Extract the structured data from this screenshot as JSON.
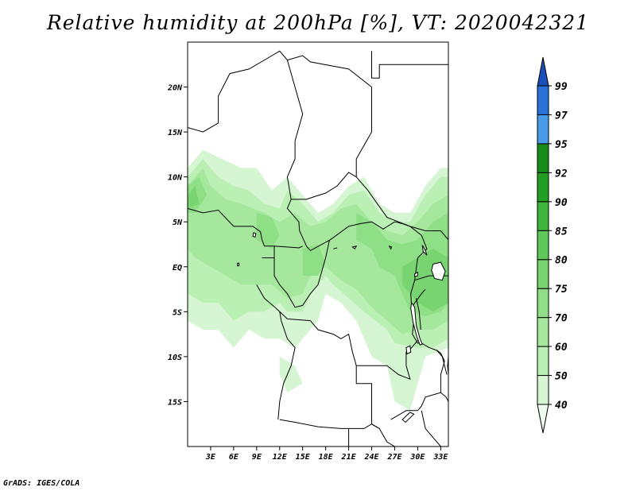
{
  "title": "Relative humidity at 200hPa [%], VT: 2020042321",
  "credit": "GrADS: IGES/COLA",
  "map": {
    "lon_range": [
      0,
      34
    ],
    "lat_range": [
      -20,
      25
    ],
    "lat_ticks": [
      {
        "value": 20,
        "label": "20N"
      },
      {
        "value": 15,
        "label": "15N"
      },
      {
        "value": 10,
        "label": "10N"
      },
      {
        "value": 5,
        "label": "5N"
      },
      {
        "value": 0,
        "label": "EQ"
      },
      {
        "value": -5,
        "label": "5S"
      },
      {
        "value": -10,
        "label": "10S"
      },
      {
        "value": -15,
        "label": "15S"
      }
    ],
    "lon_ticks": [
      {
        "value": 3,
        "label": "3E"
      },
      {
        "value": 6,
        "label": "6E"
      },
      {
        "value": 9,
        "label": "9E"
      },
      {
        "value": 12,
        "label": "12E"
      },
      {
        "value": 15,
        "label": "15E"
      },
      {
        "value": 18,
        "label": "18E"
      },
      {
        "value": 21,
        "label": "21E"
      },
      {
        "value": 24,
        "label": "24E"
      },
      {
        "value": 27,
        "label": "27E"
      },
      {
        "value": 30,
        "label": "30E"
      },
      {
        "value": 33,
        "label": "33E"
      }
    ]
  },
  "colorbar": {
    "levels": [
      "40",
      "50",
      "60",
      "70",
      "75",
      "80",
      "85",
      "90",
      "92",
      "95",
      "97",
      "99"
    ],
    "colors": [
      "#f0fcf0",
      "#d6f5d2",
      "#bbf0b4",
      "#a5e89d",
      "#8fdf86",
      "#78d470",
      "#5fc85a",
      "#3fb53c",
      "#23a023",
      "#1a8c1a",
      "#4a9ce8",
      "#2a72d8",
      "#1a4eb8"
    ]
  },
  "humidity_regions": [
    {
      "level": "40",
      "points": [
        [
          0,
          11
        ],
        [
          2,
          13
        ],
        [
          4.5,
          12
        ],
        [
          7,
          11
        ],
        [
          9,
          11
        ],
        [
          11,
          8.5
        ],
        [
          13,
          10
        ],
        [
          15,
          8
        ],
        [
          17,
          6
        ],
        [
          19,
          7
        ],
        [
          21,
          9
        ],
        [
          23,
          10
        ],
        [
          25,
          7
        ],
        [
          27,
          6
        ],
        [
          29,
          6
        ],
        [
          31,
          9
        ],
        [
          33,
          11
        ],
        [
          34,
          11
        ],
        [
          34,
          -9
        ],
        [
          31,
          -10
        ],
        [
          30,
          -13
        ],
        [
          29,
          -16
        ],
        [
          27,
          -15
        ],
        [
          26,
          -11
        ],
        [
          24,
          -10
        ],
        [
          22,
          -6
        ],
        [
          20,
          -4
        ],
        [
          18,
          -3
        ],
        [
          17,
          -6
        ],
        [
          14,
          -9
        ],
        [
          12,
          -8
        ],
        [
          10,
          -8
        ],
        [
          8,
          -7
        ],
        [
          6,
          -9
        ],
        [
          4,
          -7
        ],
        [
          2,
          -7
        ],
        [
          0,
          -6
        ]
      ]
    },
    {
      "level": "40",
      "points": [
        [
          12,
          -10
        ],
        [
          14,
          -11
        ],
        [
          15,
          -13
        ],
        [
          13,
          -14
        ],
        [
          12,
          -12
        ]
      ]
    },
    {
      "level": "50",
      "points": [
        [
          0,
          10
        ],
        [
          2,
          12
        ],
        [
          4,
          10
        ],
        [
          6,
          9
        ],
        [
          8,
          8.5
        ],
        [
          10,
          7
        ],
        [
          12,
          6.5
        ],
        [
          13,
          8.5
        ],
        [
          15,
          7
        ],
        [
          17,
          5
        ],
        [
          19,
          6
        ],
        [
          21,
          8
        ],
        [
          23,
          8.5
        ],
        [
          25,
          6
        ],
        [
          27,
          5
        ],
        [
          29,
          5
        ],
        [
          31,
          8
        ],
        [
          33,
          10
        ],
        [
          34,
          10
        ],
        [
          34,
          -8
        ],
        [
          32,
          -9
        ],
        [
          30,
          -9
        ],
        [
          27,
          -8.5
        ],
        [
          26,
          -7
        ],
        [
          23,
          -5
        ],
        [
          21,
          -3.5
        ],
        [
          19,
          -2
        ],
        [
          18,
          -1
        ],
        [
          16,
          -3
        ],
        [
          15,
          -5
        ],
        [
          13,
          -5
        ],
        [
          12,
          -4
        ],
        [
          10,
          -5
        ],
        [
          8,
          -5
        ],
        [
          6,
          -6
        ],
        [
          4,
          -4
        ],
        [
          2,
          -4
        ],
        [
          0,
          -3
        ]
      ]
    },
    {
      "level": "60",
      "points": [
        [
          0,
          9
        ],
        [
          2,
          11
        ],
        [
          3,
          9
        ],
        [
          5,
          7.5
        ],
        [
          7,
          7
        ],
        [
          10,
          6
        ],
        [
          12,
          5
        ],
        [
          14,
          6
        ],
        [
          16,
          4.5
        ],
        [
          18,
          5
        ],
        [
          20,
          6.5
        ],
        [
          22,
          7
        ],
        [
          24,
          5
        ],
        [
          26,
          4
        ],
        [
          28,
          3.5
        ],
        [
          30,
          5
        ],
        [
          32,
          7
        ],
        [
          34,
          8
        ],
        [
          34,
          -6
        ],
        [
          32,
          -7
        ],
        [
          30,
          -7
        ],
        [
          28,
          -7.5
        ],
        [
          26,
          -6
        ],
        [
          24,
          -4.5
        ],
        [
          22,
          -2.5
        ],
        [
          20,
          -1.5
        ],
        [
          18,
          0
        ],
        [
          16,
          -1
        ],
        [
          15,
          -3
        ],
        [
          13,
          -3.5
        ],
        [
          11,
          -2
        ],
        [
          9,
          -2
        ],
        [
          7,
          -2
        ],
        [
          5,
          -1
        ],
        [
          3,
          0
        ],
        [
          1,
          1
        ],
        [
          0,
          2
        ]
      ]
    },
    {
      "level": "70",
      "points": [
        [
          0,
          9
        ],
        [
          1.5,
          10
        ],
        [
          2.5,
          8
        ],
        [
          1,
          6
        ],
        [
          0,
          6
        ]
      ]
    },
    {
      "level": "70",
      "points": [
        [
          9,
          6
        ],
        [
          11,
          5.5
        ],
        [
          12,
          3.5
        ],
        [
          11,
          2
        ],
        [
          9,
          3
        ]
      ]
    },
    {
      "level": "70",
      "points": [
        [
          22,
          6
        ],
        [
          24,
          5
        ],
        [
          26,
          3
        ],
        [
          28,
          2.5
        ],
        [
          30,
          3
        ],
        [
          32,
          5
        ],
        [
          34,
          6
        ],
        [
          34,
          -4
        ],
        [
          33,
          -5
        ],
        [
          31,
          -5.5
        ],
        [
          29,
          -5
        ],
        [
          28,
          -3
        ],
        [
          27,
          -1
        ],
        [
          25,
          0
        ],
        [
          24,
          2
        ],
        [
          22,
          3
        ]
      ]
    },
    {
      "level": "70",
      "points": [
        [
          15,
          2
        ],
        [
          17,
          2.5
        ],
        [
          18,
          0.5
        ],
        [
          17,
          -1
        ],
        [
          15,
          -1
        ]
      ]
    },
    {
      "level": "75",
      "points": [
        [
          28,
          0
        ],
        [
          30,
          1
        ],
        [
          32,
          2
        ],
        [
          34,
          1
        ],
        [
          34,
          -4
        ],
        [
          32,
          -5
        ],
        [
          30,
          -4
        ],
        [
          28,
          -2
        ]
      ]
    },
    {
      "level": "75",
      "points": [
        [
          0,
          8
        ],
        [
          1,
          9
        ],
        [
          1.5,
          7
        ],
        [
          0,
          6.5
        ]
      ]
    }
  ],
  "boundaries": [
    [
      [
        0,
        15.5
      ],
      [
        2,
        15
      ],
      [
        4,
        16
      ],
      [
        4,
        19
      ],
      [
        5.5,
        21.5
      ],
      [
        8,
        22
      ],
      [
        11,
        23.5
      ],
      [
        12,
        24
      ],
      [
        13,
        23
      ]
    ],
    [
      [
        13,
        23
      ],
      [
        15,
        23.5
      ],
      [
        16,
        22.8
      ],
      [
        21,
        22
      ],
      [
        24,
        20
      ],
      [
        24,
        15
      ],
      [
        22,
        12
      ],
      [
        22,
        10
      ],
      [
        23.5,
        8.5
      ],
      [
        26,
        5.5
      ],
      [
        27.5,
        5
      ],
      [
        29,
        4.5
      ],
      [
        31,
        4
      ],
      [
        33,
        4
      ],
      [
        34,
        3
      ]
    ],
    [
      [
        13,
        23
      ],
      [
        14,
        20
      ],
      [
        15,
        17
      ],
      [
        14,
        14
      ],
      [
        14,
        12
      ],
      [
        13,
        10
      ],
      [
        13.5,
        7.5
      ],
      [
        15.5,
        7.5
      ],
      [
        16.5,
        7.8
      ],
      [
        18,
        8.2
      ],
      [
        19.5,
        9
      ],
      [
        21,
        10.5
      ],
      [
        22,
        10
      ]
    ],
    [
      [
        24,
        24
      ],
      [
        24,
        21
      ],
      [
        25,
        21
      ],
      [
        25,
        22.5
      ],
      [
        34,
        22.5
      ]
    ],
    [
      [
        13.5,
        7.5
      ],
      [
        13,
        6.5
      ],
      [
        14.5,
        5
      ],
      [
        14.6,
        4
      ],
      [
        15.5,
        2.3
      ],
      [
        16,
        1.8
      ],
      [
        18.6,
        3
      ],
      [
        21,
        4.5
      ],
      [
        22.5,
        4.8
      ],
      [
        24,
        5
      ],
      [
        25.5,
        4.2
      ],
      [
        27,
        5
      ],
      [
        28,
        4.8
      ],
      [
        29,
        4.5
      ],
      [
        30.5,
        3.5
      ],
      [
        31.2,
        2
      ],
      [
        30,
        1
      ],
      [
        29.6,
        -1.5
      ],
      [
        29.1,
        -3
      ],
      [
        29.2,
        -4.5
      ],
      [
        29.5,
        -6
      ],
      [
        30.2,
        -8
      ],
      [
        29.2,
        -9
      ],
      [
        28.5,
        -9.5
      ],
      [
        28.5,
        -11
      ],
      [
        29,
        -12.5
      ],
      [
        27.5,
        -12
      ],
      [
        26,
        -11
      ],
      [
        24,
        -11
      ],
      [
        22,
        -11
      ],
      [
        22,
        -13
      ],
      [
        24,
        -13
      ],
      [
        24,
        -17.5
      ],
      [
        25,
        -18
      ]
    ],
    [
      [
        0,
        6.5
      ],
      [
        2,
        6
      ],
      [
        4,
        6.3
      ],
      [
        6,
        4.5
      ],
      [
        8.5,
        4.5
      ],
      [
        9.5,
        3.9
      ],
      [
        9.7,
        3
      ],
      [
        10,
        2.3
      ],
      [
        11.3,
        2.3
      ],
      [
        13,
        2.2
      ],
      [
        14.5,
        2.1
      ],
      [
        15,
        2.3
      ]
    ],
    [
      [
        9.7,
        1
      ],
      [
        11.3,
        1
      ],
      [
        11.3,
        2.3
      ]
    ],
    [
      [
        11.3,
        1
      ],
      [
        11.3,
        -1
      ],
      [
        12,
        -2
      ],
      [
        13,
        -3
      ],
      [
        14,
        -4.5
      ],
      [
        15,
        -4.3
      ],
      [
        16,
        -3
      ],
      [
        17,
        -2
      ],
      [
        18,
        1
      ],
      [
        18.5,
        3
      ]
    ],
    [
      [
        9,
        -2
      ],
      [
        10,
        -3.5
      ],
      [
        11.5,
        -4.6
      ],
      [
        12,
        -5
      ],
      [
        12.2,
        -6
      ],
      [
        13,
        -8
      ],
      [
        14,
        -9
      ],
      [
        13.5,
        -11
      ],
      [
        12.5,
        -13
      ],
      [
        12,
        -15
      ],
      [
        11.8,
        -17
      ]
    ],
    [
      [
        12,
        -5
      ],
      [
        13,
        -5.8
      ],
      [
        16,
        -6
      ],
      [
        17,
        -7
      ],
      [
        19,
        -7.5
      ],
      [
        20,
        -8
      ],
      [
        21,
        -7.5
      ],
      [
        21.5,
        -9.5
      ],
      [
        22,
        -11
      ]
    ],
    [
      [
        12,
        -17
      ],
      [
        14,
        -17.3
      ],
      [
        17,
        -17.8
      ],
      [
        20,
        -18
      ],
      [
        21,
        -18
      ],
      [
        23,
        -18
      ],
      [
        24,
        -17.5
      ],
      [
        25,
        -18
      ],
      [
        26,
        -19.5
      ],
      [
        27,
        -20
      ]
    ],
    [
      [
        21,
        -18
      ],
      [
        21,
        -20
      ]
    ],
    [
      [
        30.5,
        -8.5
      ],
      [
        31.5,
        -9
      ],
      [
        32.5,
        -9.3
      ],
      [
        33,
        -9.6
      ],
      [
        33.5,
        -10.5
      ],
      [
        33,
        -12
      ],
      [
        33,
        -14
      ],
      [
        31,
        -14.5
      ],
      [
        30.5,
        -15.5
      ],
      [
        30,
        -16
      ],
      [
        28.5,
        -16
      ],
      [
        26.5,
        -17
      ]
    ],
    [
      [
        30.5,
        -16
      ],
      [
        31,
        -18
      ],
      [
        32.5,
        -19.5
      ],
      [
        33,
        -20
      ]
    ],
    [
      [
        33,
        -14
      ],
      [
        33.7,
        -14.5
      ],
      [
        34,
        -15
      ]
    ],
    [
      [
        29.6,
        -1.5
      ],
      [
        31.5,
        -1
      ],
      [
        34,
        -1
      ]
    ],
    [
      [
        29.2,
        -4.5
      ],
      [
        30.5,
        -3
      ],
      [
        31,
        -2.5
      ]
    ],
    [
      [
        29.5,
        -6
      ],
      [
        29.3,
        -7.5
      ],
      [
        30,
        -8.5
      ],
      [
        30.5,
        -8.5
      ]
    ],
    [
      [
        29.8,
        -3.5
      ],
      [
        30.2,
        -5
      ],
      [
        30.4,
        -7
      ]
    ],
    [
      [
        32.5,
        -9.3
      ],
      [
        33.2,
        -10
      ],
      [
        33.8,
        -12
      ]
    ]
  ],
  "lakes": [
    [
      [
        32,
        0.3
      ],
      [
        33,
        0.5
      ],
      [
        33.6,
        -0.5
      ],
      [
        33.2,
        -1.5
      ],
      [
        32.2,
        -1.3
      ],
      [
        31.8,
        -0.4
      ]
    ],
    [
      [
        29.2,
        -4
      ],
      [
        29.6,
        -4.5
      ],
      [
        29.8,
        -6.5
      ],
      [
        30.3,
        -8
      ],
      [
        30.6,
        -8.6
      ],
      [
        30.3,
        -8.7
      ],
      [
        29.9,
        -7.8
      ],
      [
        29.4,
        -6.2
      ],
      [
        29.1,
        -4.6
      ]
    ],
    [
      [
        30.6,
        2.4
      ],
      [
        31,
        1.8
      ],
      [
        31.2,
        1.3
      ],
      [
        30.7,
        1.7
      ]
    ],
    [
      [
        29.6,
        -0.8
      ],
      [
        30,
        -0.6
      ],
      [
        30,
        -1
      ],
      [
        29.6,
        -1.1
      ]
    ],
    [
      [
        28.5,
        -9
      ],
      [
        29,
        -8.8
      ],
      [
        29.1,
        -9.5
      ],
      [
        28.6,
        -9.7
      ]
    ],
    [
      [
        34,
        -10
      ],
      [
        34.3,
        -11
      ],
      [
        34.2,
        -12.5
      ],
      [
        34,
        -12
      ],
      [
        33.9,
        -11
      ]
    ],
    [
      [
        28,
        -17
      ],
      [
        29,
        -16.2
      ],
      [
        29.5,
        -16.4
      ],
      [
        28.4,
        -17.3
      ]
    ],
    [
      [
        8.6,
        3.8
      ],
      [
        8.9,
        3.7
      ],
      [
        8.8,
        3.3
      ],
      [
        8.5,
        3.4
      ]
    ],
    [
      [
        6.5,
        0.4
      ],
      [
        6.7,
        0.4
      ],
      [
        6.7,
        0.1
      ],
      [
        6.5,
        0.1
      ]
    ],
    [
      [
        34.5,
        -1
      ],
      [
        35,
        0
      ],
      [
        34.8,
        0.5
      ]
    ],
    [
      [
        26.3,
        2.3
      ],
      [
        26.6,
        2.2
      ],
      [
        26.5,
        2.0
      ]
    ],
    [
      [
        21.5,
        2.2
      ],
      [
        22.0,
        2.3
      ],
      [
        21.8,
        2.0
      ]
    ],
    [
      [
        19.0,
        2.0
      ],
      [
        19.5,
        2.1
      ]
    ],
    [
      [
        34.5,
        -5
      ],
      [
        34.4,
        -7
      ],
      [
        34.3,
        -9
      ]
    ]
  ]
}
